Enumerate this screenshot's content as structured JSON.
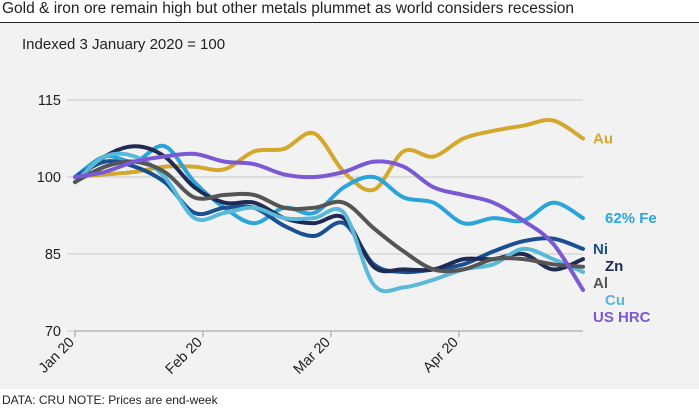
{
  "title": "Gold & iron ore remain high but other metals plummet as world considers recession",
  "footer": "DATA: CRU NOTE: Prices are end-week",
  "chart_data": {
    "type": "line",
    "subtitle": "Indexed 3 January 2020 = 100",
    "xlabel": "",
    "ylabel": "",
    "x_ticks": [
      "Jan 20",
      "Feb 20",
      "Mar 20",
      "Apr 20"
    ],
    "x": [
      0,
      1,
      2,
      3,
      4,
      5,
      6,
      7,
      8,
      9,
      10,
      11,
      12,
      13,
      14,
      15,
      16,
      17
    ],
    "ylim": [
      70,
      115
    ],
    "y_ticks": [
      70,
      85,
      100,
      115
    ],
    "grid": true,
    "legend": "right-end labels",
    "series": [
      {
        "name": "Au",
        "color": "#d4a82c",
        "values": [
          100,
          100.5,
          101,
          102,
          102,
          101.5,
          105,
          105.5,
          108.5,
          101,
          97.5,
          105,
          104,
          107.5,
          109,
          110,
          111,
          107.5
        ]
      },
      {
        "name": "62% Fe",
        "color": "#2ba4d9",
        "values": [
          100,
          104,
          103,
          106,
          99,
          94,
          91,
          94,
          93,
          98,
          100,
          96,
          95,
          91,
          92,
          91.5,
          95,
          92
        ]
      },
      {
        "name": "Ni",
        "color": "#1a4f91",
        "values": [
          100,
          103,
          102,
          99,
          93,
          94,
          94,
          90.5,
          88.5,
          91,
          83,
          81.5,
          82,
          83,
          85.5,
          87.5,
          88,
          86
        ]
      },
      {
        "name": "Zn",
        "color": "#1f2a55",
        "values": [
          99,
          104,
          106,
          104,
          98,
          95,
          95,
          92,
          91,
          92,
          82.5,
          82,
          82,
          84,
          84,
          85,
          82,
          84
        ]
      },
      {
        "name": "Cu",
        "color": "#5ab8d8",
        "values": [
          99,
          104,
          104,
          100,
          92,
          93,
          94,
          92,
          92,
          93,
          79,
          78.5,
          80,
          82,
          83,
          86,
          84,
          81.5
        ]
      },
      {
        "name": "Al",
        "color": "#555555",
        "values": [
          99,
          102,
          103,
          101,
          96,
          96.5,
          96.5,
          94,
          94,
          95,
          90,
          85.5,
          82,
          82,
          84,
          84,
          83,
          82.5
        ]
      },
      {
        "name": "US HRC",
        "color": "#7b58d4",
        "values": [
          100,
          101,
          103,
          104,
          104.5,
          103,
          102.5,
          100.5,
          100,
          101,
          103,
          102,
          98,
          96.5,
          95,
          91.5,
          87,
          78
        ]
      }
    ]
  }
}
